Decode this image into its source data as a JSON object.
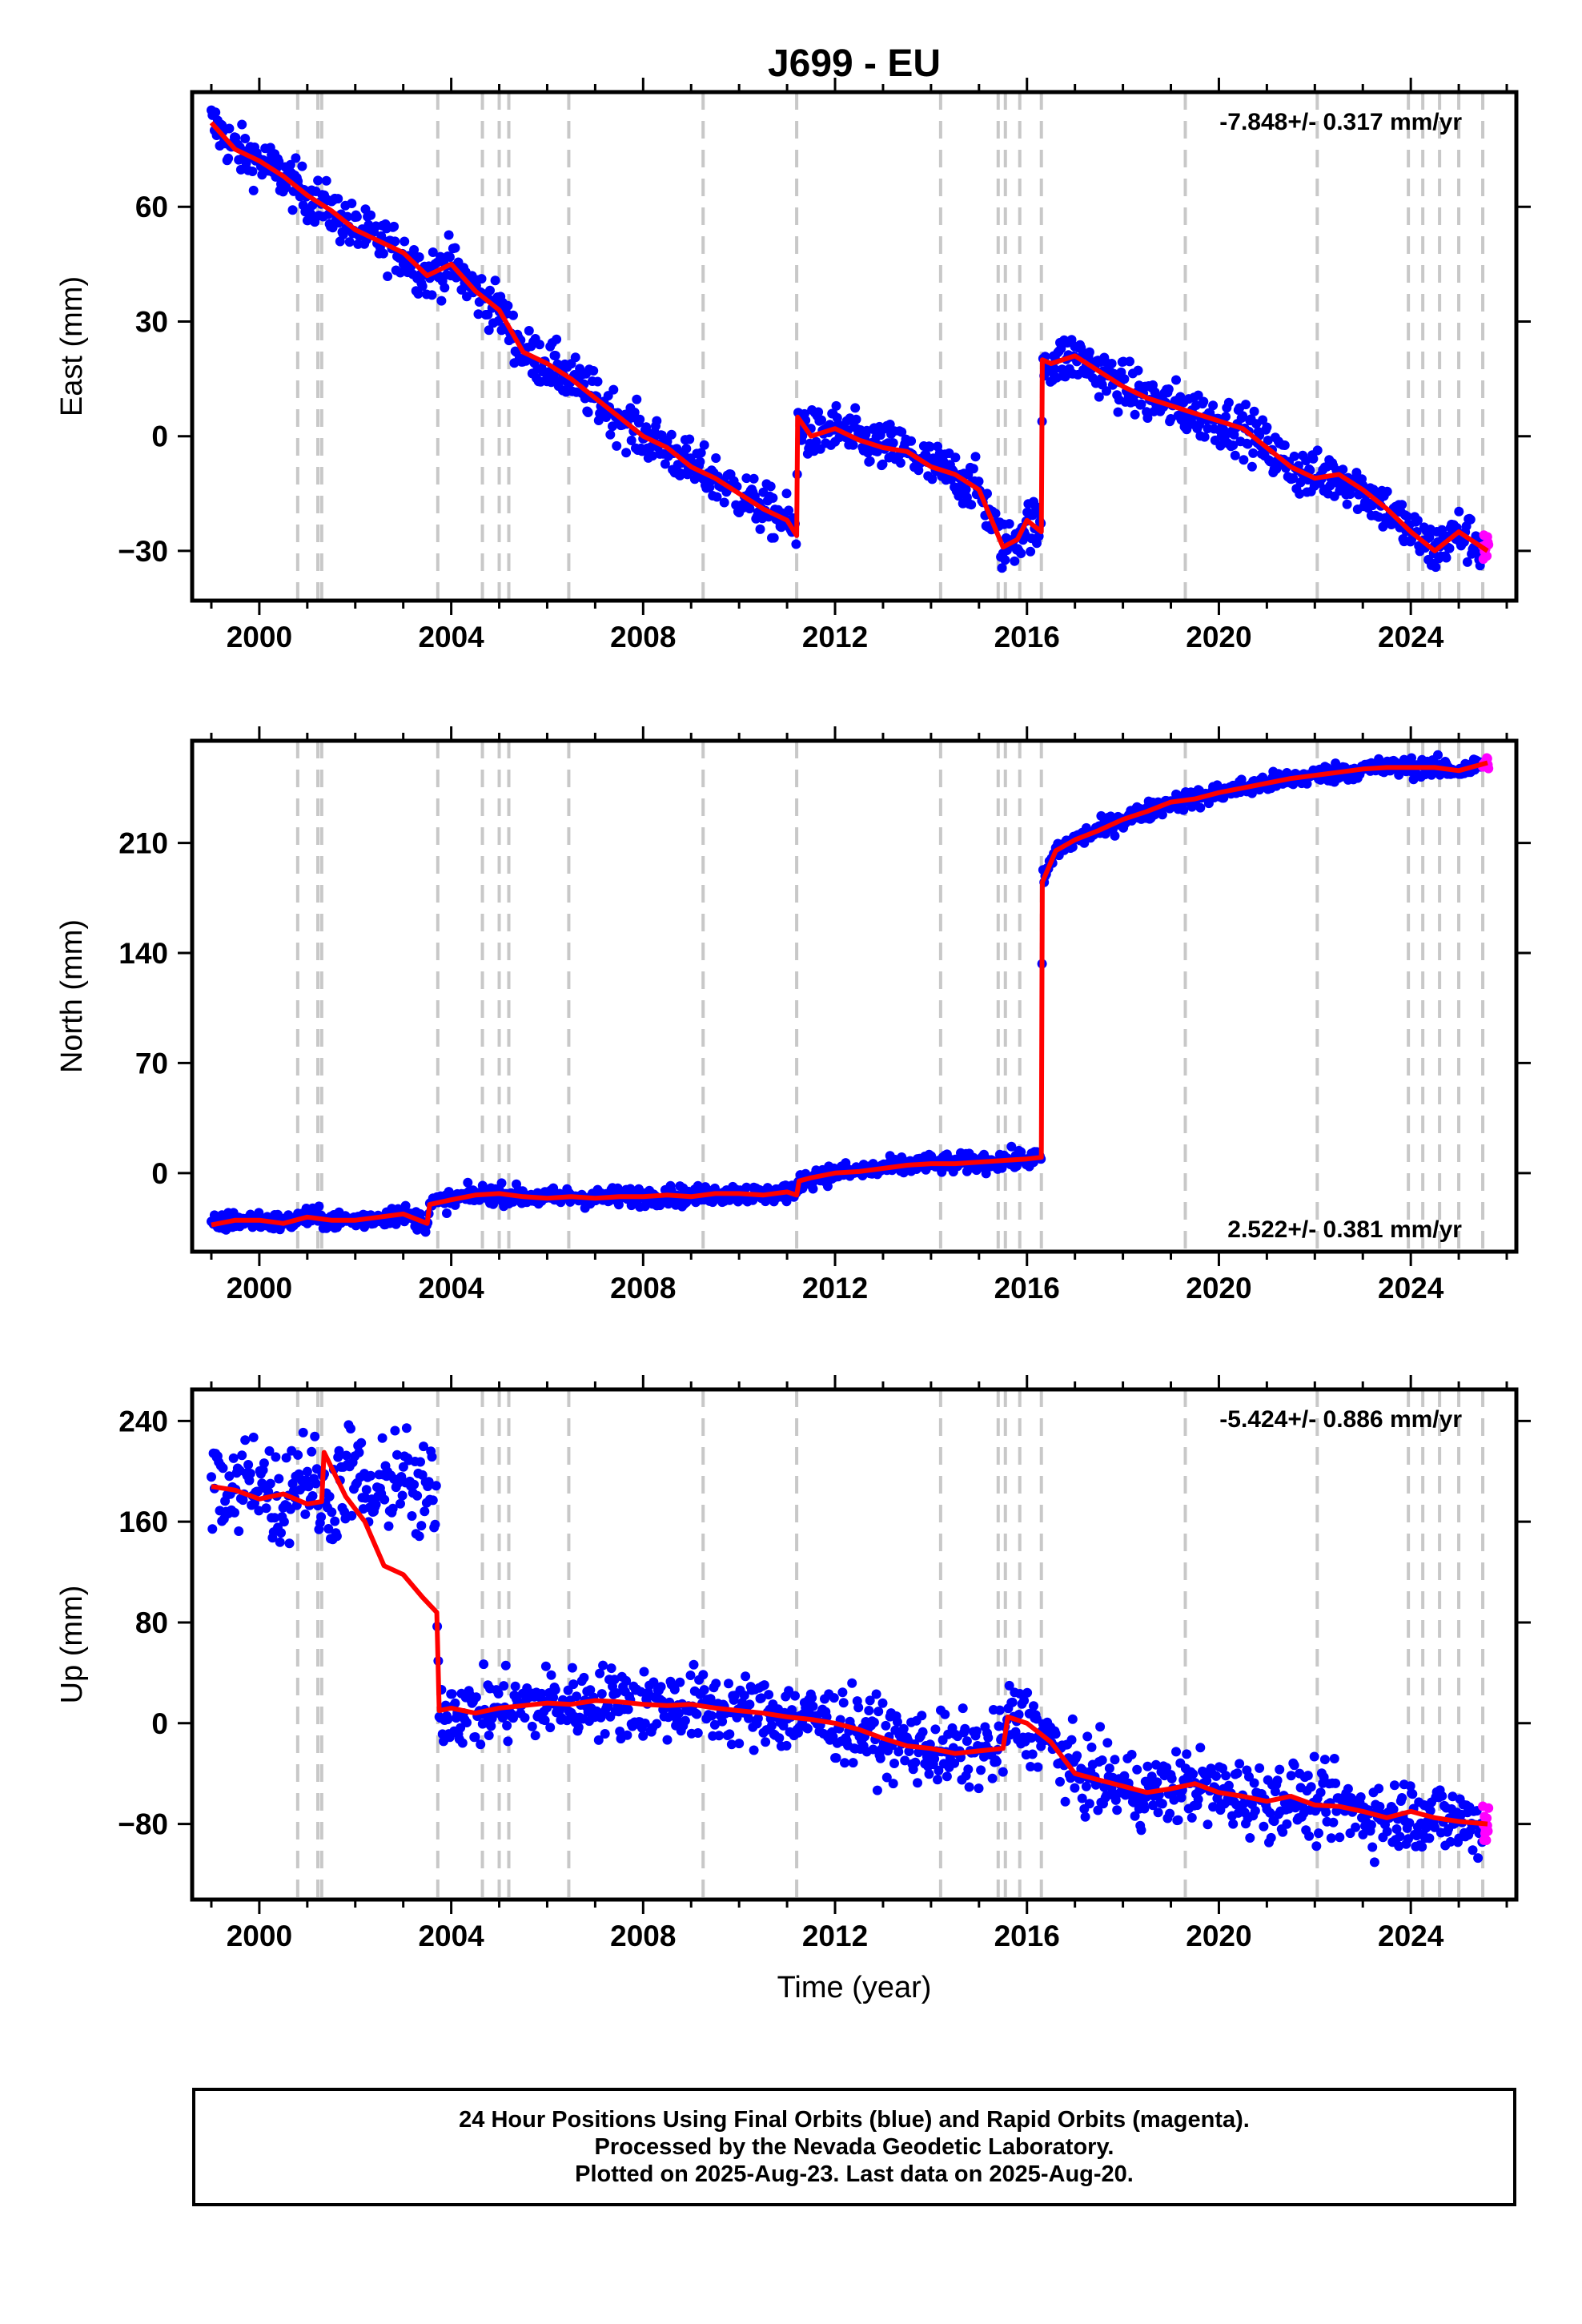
{
  "title": "J699 - EU",
  "colors": {
    "final_orbits": "#0000ff",
    "rapid_orbits": "#ff00ff",
    "model": "#ff0000",
    "event_lines": "#c8c8c8",
    "axes": "#000000"
  },
  "chart_data": [
    {
      "type": "scatter",
      "ylabel": "East (mm)",
      "xlabel": "",
      "xlim": [
        1998.6,
        2026.2
      ],
      "ylim": [
        -43,
        90
      ],
      "xticks": [
        2000,
        2004,
        2008,
        2012,
        2016,
        2020,
        2024
      ],
      "yticks": [
        -30,
        0,
        30,
        60
      ],
      "rate_label": "-7.848+/- 0.317 mm/yr",
      "rate_label_position": "top-right",
      "trend_line": [
        [
          1999.0,
          82
        ],
        [
          1999.5,
          75
        ],
        [
          2000.0,
          72
        ],
        [
          2000.5,
          68
        ],
        [
          2001.0,
          63
        ],
        [
          2001.5,
          59
        ],
        [
          2002.0,
          54
        ],
        [
          2002.5,
          51
        ],
        [
          2003.0,
          48
        ],
        [
          2003.5,
          42
        ],
        [
          2004.0,
          45
        ],
        [
          2004.5,
          38
        ],
        [
          2005.0,
          33
        ],
        [
          2005.5,
          22
        ],
        [
          2006.0,
          19
        ],
        [
          2006.5,
          15
        ],
        [
          2007.0,
          10
        ],
        [
          2007.5,
          5
        ],
        [
          2008.0,
          0
        ],
        [
          2008.5,
          -3
        ],
        [
          2009.0,
          -8
        ],
        [
          2009.5,
          -11
        ],
        [
          2010.0,
          -15
        ],
        [
          2010.5,
          -19
        ],
        [
          2011.0,
          -22
        ],
        [
          2011.2,
          -26
        ],
        [
          2011.22,
          5
        ],
        [
          2011.5,
          0
        ],
        [
          2012.0,
          2
        ],
        [
          2012.5,
          -1
        ],
        [
          2013.0,
          -3
        ],
        [
          2013.5,
          -4
        ],
        [
          2014.0,
          -8
        ],
        [
          2014.5,
          -10
        ],
        [
          2015.0,
          -14
        ],
        [
          2015.5,
          -29
        ],
        [
          2015.8,
          -27
        ],
        [
          2016.0,
          -22
        ],
        [
          2016.3,
          -25
        ],
        [
          2016.32,
          20
        ],
        [
          2016.5,
          19
        ],
        [
          2017.0,
          21
        ],
        [
          2017.5,
          17
        ],
        [
          2018.0,
          13
        ],
        [
          2018.5,
          10
        ],
        [
          2019.0,
          8
        ],
        [
          2019.5,
          6
        ],
        [
          2020.0,
          4
        ],
        [
          2020.5,
          2
        ],
        [
          2021.0,
          -3
        ],
        [
          2021.5,
          -8
        ],
        [
          2022.0,
          -11
        ],
        [
          2022.5,
          -10
        ],
        [
          2023.0,
          -14
        ],
        [
          2023.5,
          -19
        ],
        [
          2024.0,
          -25
        ],
        [
          2024.5,
          -30
        ],
        [
          2025.0,
          -25
        ],
        [
          2025.6,
          -30
        ]
      ]
    },
    {
      "type": "scatter",
      "ylabel": "North (mm)",
      "xlabel": "",
      "xlim": [
        1998.6,
        2026.2
      ],
      "ylim": [
        -50,
        275
      ],
      "xticks": [
        2000,
        2004,
        2008,
        2012,
        2016,
        2020,
        2024
      ],
      "yticks": [
        0,
        70,
        140,
        210
      ],
      "rate_label": "2.522+/- 0.381 mm/yr",
      "rate_label_position": "bottom-right",
      "trend_line": [
        [
          1999.0,
          -33
        ],
        [
          1999.5,
          -30
        ],
        [
          2000.0,
          -30
        ],
        [
          2000.5,
          -32
        ],
        [
          2001.0,
          -28
        ],
        [
          2001.5,
          -30
        ],
        [
          2002.0,
          -30
        ],
        [
          2002.5,
          -28
        ],
        [
          2003.0,
          -26
        ],
        [
          2003.5,
          -32
        ],
        [
          2003.55,
          -20
        ],
        [
          2004.0,
          -17
        ],
        [
          2004.5,
          -14
        ],
        [
          2005.0,
          -13
        ],
        [
          2005.5,
          -15
        ],
        [
          2006.0,
          -16
        ],
        [
          2006.5,
          -15
        ],
        [
          2007.0,
          -16
        ],
        [
          2007.5,
          -15
        ],
        [
          2008.0,
          -15
        ],
        [
          2008.5,
          -14
        ],
        [
          2009.0,
          -15
        ],
        [
          2009.5,
          -13
        ],
        [
          2010.0,
          -13
        ],
        [
          2010.5,
          -14
        ],
        [
          2011.0,
          -12
        ],
        [
          2011.2,
          -14
        ],
        [
          2011.25,
          -5
        ],
        [
          2011.5,
          -3
        ],
        [
          2012.0,
          0
        ],
        [
          2012.5,
          1
        ],
        [
          2013.0,
          3
        ],
        [
          2013.5,
          5
        ],
        [
          2014.0,
          6
        ],
        [
          2014.5,
          6
        ],
        [
          2015.0,
          7
        ],
        [
          2015.5,
          8
        ],
        [
          2016.0,
          9
        ],
        [
          2016.3,
          10
        ],
        [
          2016.32,
          185
        ],
        [
          2016.6,
          205
        ],
        [
          2017.0,
          212
        ],
        [
          2017.5,
          218
        ],
        [
          2018.0,
          225
        ],
        [
          2018.5,
          230
        ],
        [
          2019.0,
          236
        ],
        [
          2019.5,
          238
        ],
        [
          2020.0,
          242
        ],
        [
          2020.5,
          245
        ],
        [
          2021.0,
          248
        ],
        [
          2021.5,
          251
        ],
        [
          2022.0,
          253
        ],
        [
          2022.5,
          255
        ],
        [
          2023.0,
          257
        ],
        [
          2023.5,
          258
        ],
        [
          2024.0,
          258
        ],
        [
          2024.5,
          258
        ],
        [
          2025.0,
          256
        ],
        [
          2025.6,
          261
        ]
      ]
    },
    {
      "type": "scatter",
      "ylabel": "Up (mm)",
      "xlabel": "Time (year)",
      "xlim": [
        1998.6,
        2026.2
      ],
      "ylim": [
        -140,
        265
      ],
      "xticks": [
        2000,
        2004,
        2008,
        2012,
        2016,
        2020,
        2024
      ],
      "yticks": [
        -80,
        0,
        80,
        160,
        240
      ],
      "rate_label": "-5.424+/- 0.886 mm/yr",
      "rate_label_position": "top-right",
      "trend_line": [
        [
          1999.0,
          188
        ],
        [
          1999.5,
          185
        ],
        [
          2000.0,
          178
        ],
        [
          2000.5,
          182
        ],
        [
          2001.0,
          174
        ],
        [
          2001.3,
          176
        ],
        [
          2001.35,
          215
        ],
        [
          2001.8,
          180
        ],
        [
          2002.2,
          160
        ],
        [
          2002.6,
          125
        ],
        [
          2003.0,
          118
        ],
        [
          2003.4,
          100
        ],
        [
          2003.7,
          88
        ],
        [
          2003.75,
          10
        ],
        [
          2004.0,
          12
        ],
        [
          2004.5,
          8
        ],
        [
          2005.0,
          12
        ],
        [
          2005.5,
          14
        ],
        [
          2006.0,
          16
        ],
        [
          2006.5,
          15
        ],
        [
          2007.0,
          18
        ],
        [
          2007.5,
          17
        ],
        [
          2008.0,
          15
        ],
        [
          2008.5,
          14
        ],
        [
          2009.0,
          15
        ],
        [
          2009.5,
          12
        ],
        [
          2010.0,
          10
        ],
        [
          2010.5,
          8
        ],
        [
          2011.0,
          5
        ],
        [
          2011.5,
          3
        ],
        [
          2012.0,
          0
        ],
        [
          2012.5,
          -5
        ],
        [
          2013.0,
          -12
        ],
        [
          2013.5,
          -18
        ],
        [
          2014.0,
          -20
        ],
        [
          2014.5,
          -24
        ],
        [
          2015.0,
          -22
        ],
        [
          2015.5,
          -20
        ],
        [
          2015.6,
          5
        ],
        [
          2016.0,
          0
        ],
        [
          2016.5,
          -15
        ],
        [
          2017.0,
          -40
        ],
        [
          2017.5,
          -45
        ],
        [
          2018.0,
          -50
        ],
        [
          2018.5,
          -55
        ],
        [
          2019.0,
          -52
        ],
        [
          2019.5,
          -48
        ],
        [
          2020.0,
          -55
        ],
        [
          2020.5,
          -58
        ],
        [
          2021.0,
          -62
        ],
        [
          2021.5,
          -58
        ],
        [
          2022.0,
          -65
        ],
        [
          2022.5,
          -66
        ],
        [
          2023.0,
          -70
        ],
        [
          2023.5,
          -75
        ],
        [
          2024.0,
          -70
        ],
        [
          2024.5,
          -75
        ],
        [
          2025.0,
          -78
        ],
        [
          2025.6,
          -80
        ]
      ]
    }
  ],
  "event_lines_years": [
    2000.8,
    2001.22,
    2001.3,
    2003.72,
    2004.65,
    2005.0,
    2005.2,
    2006.45,
    2009.25,
    2011.2,
    2014.2,
    2015.4,
    2015.55,
    2015.85,
    2016.3,
    2019.3,
    2022.05,
    2023.95,
    2024.25,
    2024.6,
    2025.0,
    2025.5
  ],
  "footer": {
    "line1": "24 Hour Positions Using Final Orbits (blue) and Rapid Orbits (magenta).",
    "line2": "Processed by the Nevada Geodetic Laboratory.",
    "line3": "Plotted on 2025-Aug-23. Last data on 2025-Aug-20."
  }
}
